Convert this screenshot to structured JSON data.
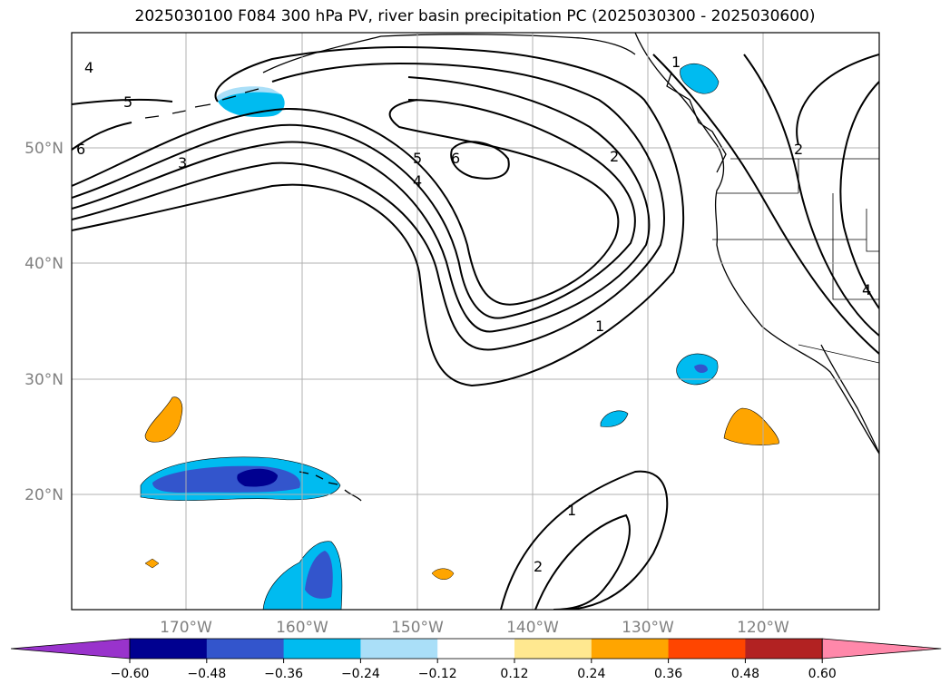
{
  "title": "2025030100 F084 300 hPa PV, river basin precipitation PC (2025030300 - 2025030600)",
  "map": {
    "lat_labels": [
      "50°N",
      "40°N",
      "30°N",
      "20°N"
    ],
    "lon_labels": [
      "170°W",
      "160°W",
      "150°W",
      "140°W",
      "130°W",
      "120°W"
    ],
    "extent": {
      "lon": [
        -180,
        -110
      ],
      "lat": [
        10,
        60
      ]
    },
    "grid": true,
    "pv_contour_labels": [
      "1",
      "2",
      "3",
      "4",
      "5",
      "6",
      "1",
      "2",
      "1",
      "2",
      "4",
      "5",
      "6",
      "4"
    ]
  },
  "colorbar": {
    "tick_labels": [
      "−0.60",
      "−0.48",
      "−0.36",
      "−0.24",
      "−0.12",
      "0.12",
      "0.24",
      "0.36",
      "0.48",
      "0.60"
    ],
    "colors": [
      "#9933cc",
      "#000090",
      "#3355cc",
      "#00bbf0",
      "#aadff8",
      "#ffffff",
      "#ffe890",
      "#ffa500",
      "#ff4500",
      "#b22222",
      "#ff88aa"
    ]
  }
}
